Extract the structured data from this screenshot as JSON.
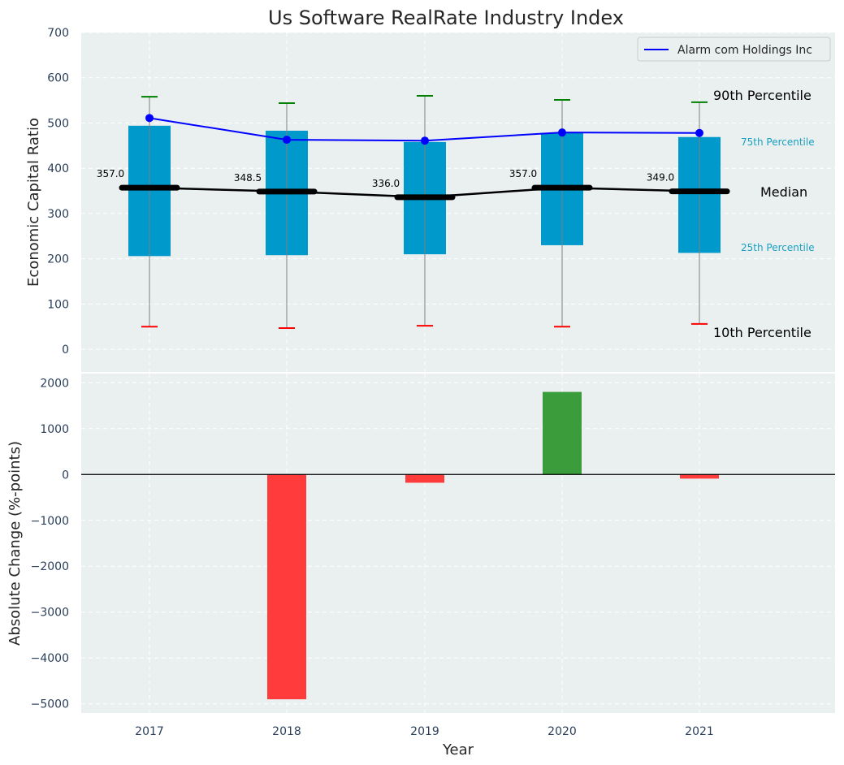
{
  "title": "Us Software RealRate Industry Index",
  "colors": {
    "panel_bg": "#eaeff0",
    "box": "#0099cc",
    "median": "#000000",
    "company_line": "#0000ff",
    "p90_cap": "#008000",
    "p10_cap": "#ff0000",
    "whisker": "#808080",
    "positive_bar": "#3a9c3a",
    "negative_bar": "#ff3b3b",
    "tick_text": "#2b3f5a",
    "pct_label_color": "#1aa0c0"
  },
  "chart_data": [
    {
      "type": "box",
      "ylabel": "Economic Capital Ratio",
      "ylim": [
        -50,
        700
      ],
      "yticks": [
        0,
        100,
        200,
        300,
        400,
        500,
        600,
        700
      ],
      "categories": [
        "2017",
        "2018",
        "2019",
        "2020",
        "2021"
      ],
      "p10": [
        50,
        47,
        52,
        50,
        56
      ],
      "p25": [
        206,
        208,
        210,
        230,
        213
      ],
      "median": [
        357.0,
        348.5,
        336.0,
        357.0,
        349.0
      ],
      "median_labels": [
        "357.0",
        "348.5",
        "336.0",
        "357.0",
        "349.0"
      ],
      "p75": [
        494,
        483,
        458,
        478,
        469
      ],
      "p90": [
        558,
        544,
        560,
        551,
        546
      ],
      "series": [
        {
          "name": "Alarm com Holdings Inc",
          "values": [
            511,
            463,
            461,
            479,
            478
          ]
        }
      ],
      "legend_position": "top-right",
      "annotations": {
        "p90": "90th Percentile",
        "p75": "75th Percentile",
        "median": "Median",
        "p25": "25th Percentile",
        "p10": "10th Percentile"
      },
      "grid": true
    },
    {
      "type": "bar",
      "xlabel": "Year",
      "ylabel": "Absolute Change (%-points)",
      "ylim": [
        -5200,
        2200
      ],
      "yticks": [
        -5000,
        -4000,
        -3000,
        -2000,
        -1000,
        0,
        1000,
        2000
      ],
      "ytick_labels": [
        "−5000",
        "−4000",
        "−3000",
        "−2000",
        "−1000",
        "0",
        "1000",
        "2000"
      ],
      "categories": [
        "2017",
        "2018",
        "2019",
        "2020",
        "2021"
      ],
      "values": [
        0,
        -4900,
        -180,
        1800,
        -90
      ],
      "grid": true
    }
  ]
}
